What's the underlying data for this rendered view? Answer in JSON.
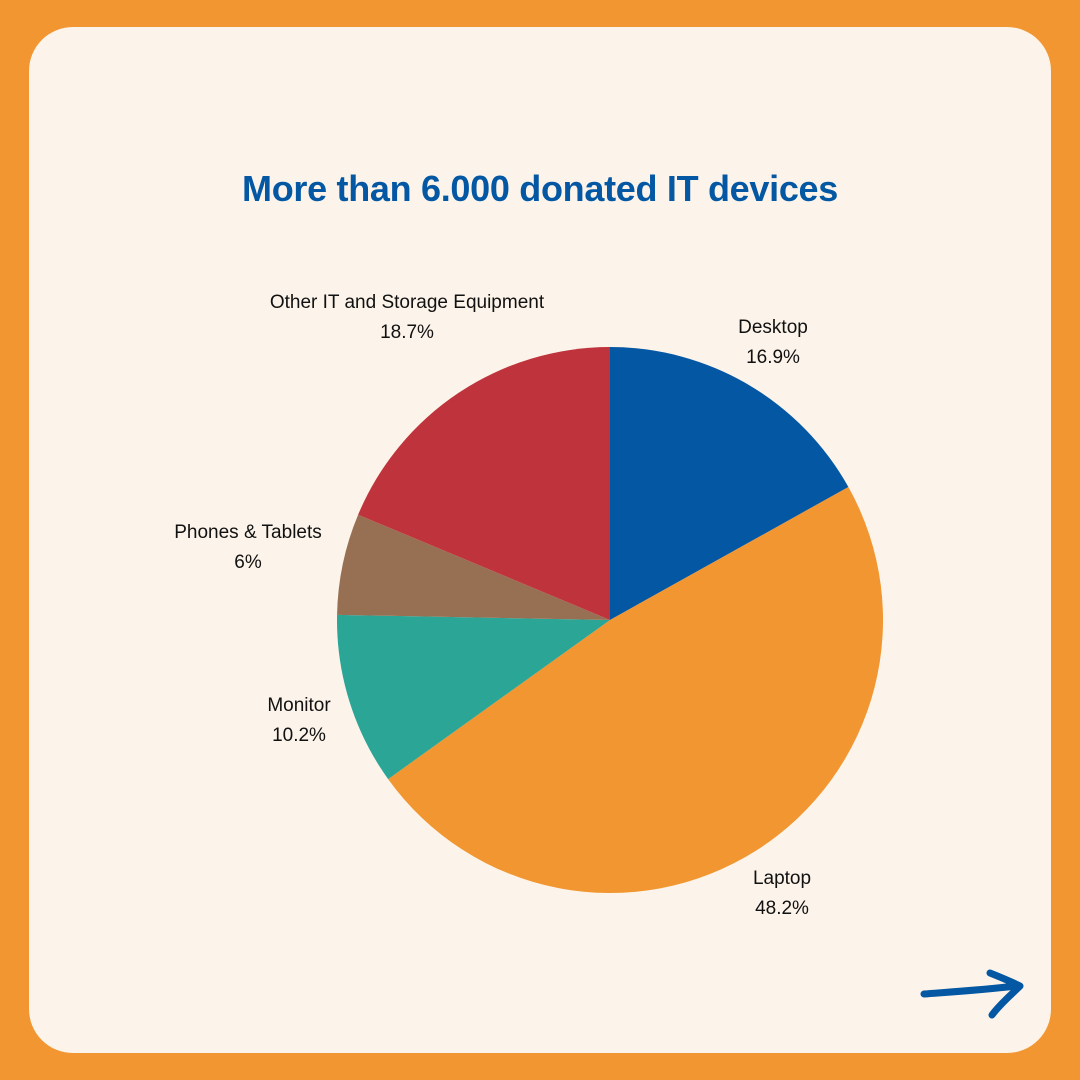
{
  "colors": {
    "frame": "#F19630",
    "card": "#FCF4EA",
    "title": "#0457A3",
    "arrow": "#0457A3"
  },
  "header": {
    "title": "More than 6.000 donated IT devices"
  },
  "chart_data": {
    "type": "pie",
    "title": "More than 6.000 donated IT devices",
    "start": "12 o'clock",
    "direction": "clockwise",
    "slices": [
      {
        "label": "Desktop",
        "value": 16.9,
        "value_label": "16.9%",
        "color": "#0457A3"
      },
      {
        "label": "Laptop",
        "value": 48.2,
        "value_label": "48.2%",
        "color": "#F19630"
      },
      {
        "label": "Monitor",
        "value": 10.2,
        "value_label": "10.2%",
        "color": "#2AA596"
      },
      {
        "label": "Phones & Tablets",
        "value": 6,
        "value_label": "6%",
        "color": "#977053"
      },
      {
        "label": "Other IT and Storage Equipment",
        "value": 18.7,
        "value_label": "18.7%",
        "color": "#BF333D"
      }
    ]
  },
  "navigation": {
    "next_icon": "arrow-right-icon"
  }
}
